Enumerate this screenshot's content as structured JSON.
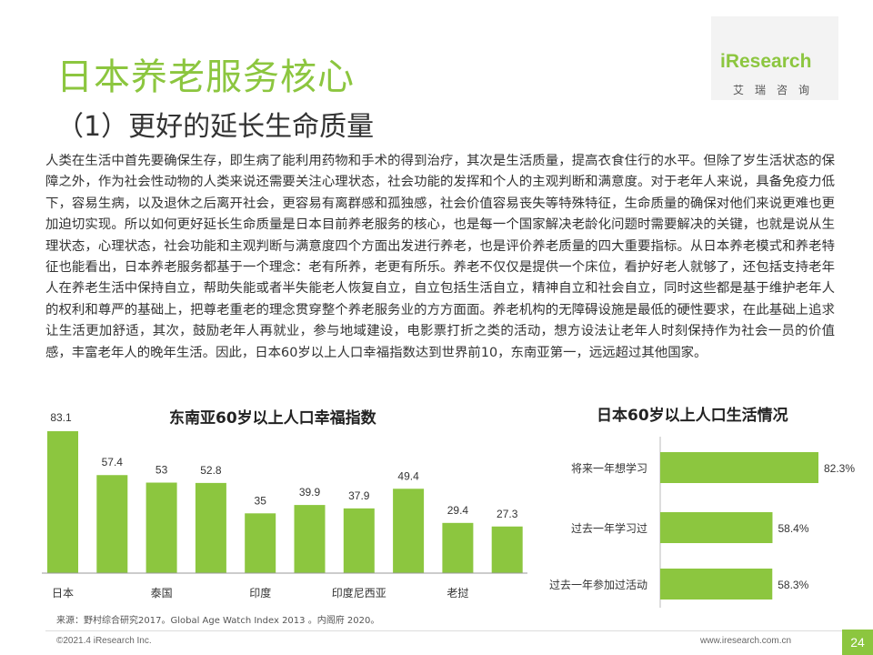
{
  "title": "日本养老服务核心",
  "subtitle": "（1）更好的延长生命质量",
  "logo": {
    "name": "iResearch",
    "sub": "艾瑞咨询"
  },
  "body": "人类在生活中首先要确保生存，即生病了能利用药物和手术的得到治疗，其次是生活质量，提高衣食住行的水平。但除了岁生活状态的保障之外，作为社会性动物的人类来说还需要关注心理状态，社会功能的发挥和个人的主观判断和满意度。对于老年人来说，具备免疫力低下，容易生病，以及退休之后离开社会，更容易有离群感和孤独感，社会价值容易丧失等特殊特征，生命质量的确保对他们来说更难也更加迫切实现。所以如何更好延长生命质量是日本目前养老服务的核心，也是每一个国家解决老龄化问题时需要解决的关键，也就是说从生理状态，心理状态，社会功能和主观判断与满意度四个方面出发进行养老，也是评价养老质量的四大重要指标。从日本养老模式和养老特征也能看出，日本养老服务都基于一个理念：老有所养，老更有所乐。养老不仅仅是提供一个床位，看护好老人就够了，还包括支持老年人在养老生活中保持自立，帮助失能或者半失能老人恢复自立，自立包括生活自立，精神自立和社会自立，同时这些都是基于维护老年人的权利和尊严的基础上，把尊老重老的理念贯穿整个养老服务业的方方面面。养老机构的无障碍设施是最低的硬性要求，在此基础上追求让生活更加舒适，其次，鼓励老年人再就业，参与地域建设，电影票打折之类的活动，想方设法让老年人时刻保持作为社会一员的价值感，丰富老年人的晚年生活。因此，日本60岁以上人口幸福指数达到世界前10，东南亚第一，远远超过其他国家。",
  "chart_data": [
    {
      "type": "bar",
      "title": "东南亚60岁以上人口幸福指数",
      "categories": [
        "日本",
        "",
        "泰国",
        "",
        "印度",
        "",
        "印度尼西亚",
        "",
        "老挝",
        ""
      ],
      "values": [
        83.1,
        57.4,
        53,
        52.8,
        35,
        39.9,
        37.9,
        49.4,
        29.4,
        27.3
      ],
      "value_labels": [
        "83.1",
        "57.4",
        "53",
        "52.8",
        "35",
        "39.9",
        "37.9",
        "49.4",
        "29.4",
        "27.3"
      ],
      "ylim": [
        0,
        83.1
      ],
      "color": "#8cc63f"
    },
    {
      "type": "bar",
      "orientation": "horizontal",
      "title": "日本60岁以上人口生活情况",
      "categories": [
        "将来一年想学习",
        "过去一年学习过",
        "过去一年参加过活动"
      ],
      "values": [
        82.3,
        58.4,
        58.3
      ],
      "value_labels": [
        "82.3%",
        "58.4%",
        "58.3%"
      ],
      "xlim": [
        0,
        100
      ],
      "color": "#8cc63f"
    }
  ],
  "source": "来源：野村综合研究2017。Global Age Watch  Index 2013 。内阁府 2020。",
  "copyright": "©2021.4 iResearch Inc.",
  "url": "www.iresearch.com.cn",
  "page_number": "24"
}
